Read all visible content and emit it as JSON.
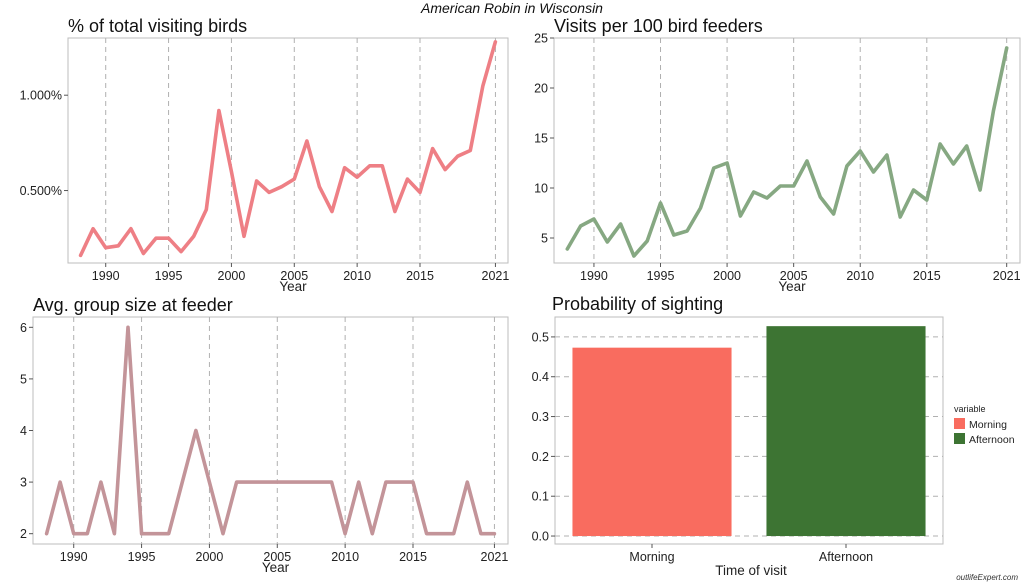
{
  "page": {
    "title": "American Robin in Wisconsin",
    "credit": "outlifeExpert.com"
  },
  "chart_data": [
    {
      "type": "line",
      "title": "% of total visiting birds",
      "xlabel": "Year",
      "ylabel": "",
      "color": "#ee7f85",
      "xlim": [
        1987,
        1923
      ],
      "ylim": [
        0.0012,
        0.013
      ],
      "xticks": [
        1990,
        1995,
        2000,
        2005,
        2010,
        2015,
        2021
      ],
      "yticks": [
        0.005,
        0.01
      ],
      "yticklabels": [
        "0.500%",
        "1.000%"
      ],
      "grid": "vertical-dashed",
      "x": [
        1988,
        1989,
        1990,
        1991,
        1992,
        1993,
        1994,
        1995,
        1996,
        1997,
        1998,
        1999,
        2000,
        2001,
        2002,
        2003,
        2004,
        2005,
        2006,
        2007,
        2008,
        2009,
        2010,
        2011,
        2012,
        2013,
        2014,
        2015,
        2016,
        2017,
        2018,
        2019,
        2020,
        2021
      ],
      "y": [
        0.0016,
        0.003,
        0.002,
        0.0021,
        0.003,
        0.0017,
        0.0025,
        0.0025,
        0.0018,
        0.0026,
        0.004,
        0.0092,
        0.006,
        0.0026,
        0.0055,
        0.0049,
        0.0052,
        0.0056,
        0.0076,
        0.0052,
        0.0039,
        0.0062,
        0.0057,
        0.0063,
        0.0063,
        0.0039,
        0.0056,
        0.0049,
        0.0072,
        0.0061,
        0.0068,
        0.0071,
        0.0105,
        0.0128
      ]
    },
    {
      "type": "line",
      "title": "Visits per 100 bird feeders",
      "xlabel": "Year",
      "ylabel": "",
      "color": "#86a882",
      "xlim": [
        1987,
        2022
      ],
      "ylim": [
        2.5,
        25
      ],
      "xticks": [
        1990,
        1995,
        2000,
        2005,
        2010,
        2015,
        2021
      ],
      "yticks": [
        5,
        10,
        15,
        20,
        25
      ],
      "yticklabels": [
        "5",
        "10",
        "15",
        "20",
        "25"
      ],
      "grid": "vertical-dashed",
      "x": [
        1988,
        1989,
        1990,
        1991,
        1992,
        1993,
        1994,
        1995,
        1996,
        1997,
        1998,
        1999,
        2000,
        2001,
        2002,
        2003,
        2004,
        2005,
        2006,
        2007,
        2008,
        2009,
        2010,
        2011,
        2012,
        2013,
        2014,
        2015,
        2016,
        2017,
        2018,
        2019,
        2020,
        2021
      ],
      "y": [
        3.9,
        6.2,
        6.9,
        4.6,
        6.4,
        3.2,
        4.7,
        8.5,
        5.3,
        5.7,
        8.0,
        12.0,
        12.5,
        7.2,
        9.6,
        9.0,
        10.2,
        10.2,
        12.7,
        9.1,
        7.4,
        12.2,
        13.7,
        11.6,
        13.3,
        7.1,
        9.8,
        8.8,
        14.4,
        12.4,
        14.2,
        9.8,
        17.7,
        24.0
      ]
    },
    {
      "type": "line",
      "title": "Avg. group size at feeder",
      "xlabel": "Year",
      "ylabel": "",
      "color": "#c39499",
      "xlim": [
        1987,
        2022
      ],
      "ylim": [
        1.8,
        6.2
      ],
      "xticks": [
        1990,
        1995,
        2000,
        2005,
        2010,
        2015,
        2021
      ],
      "yticks": [
        2,
        3,
        4,
        5,
        6
      ],
      "yticklabels": [
        "2",
        "3",
        "4",
        "5",
        "6"
      ],
      "grid": "vertical-dashed",
      "x": [
        1988,
        1989,
        1990,
        1991,
        1992,
        1993,
        1994,
        1995,
        1996,
        1997,
        1998,
        1999,
        2000,
        2001,
        2002,
        2003,
        2004,
        2005,
        2006,
        2007,
        2008,
        2009,
        2010,
        2011,
        2012,
        2013,
        2014,
        2015,
        2016,
        2017,
        2018,
        2019,
        2020,
        2021
      ],
      "y": [
        2,
        3,
        2,
        2,
        3,
        2,
        6,
        2,
        2,
        2,
        3,
        4,
        3,
        2,
        3,
        3,
        3,
        3,
        3,
        3,
        3,
        3,
        2,
        3,
        2,
        3,
        3,
        3,
        2,
        2,
        2,
        3,
        2,
        2
      ]
    },
    {
      "type": "bar",
      "title": "Probability of sighting",
      "xlabel": "Time of visit",
      "ylabel": "",
      "categories": [
        "Morning",
        "Afternoon"
      ],
      "values": [
        0.473,
        0.527
      ],
      "colors": [
        "#f96c5f",
        "#3d7433"
      ],
      "ylim": [
        -0.02,
        0.55
      ],
      "yticks": [
        0,
        0.1,
        0.2,
        0.3,
        0.4,
        0.5
      ],
      "yticklabels": [
        "0.0",
        "0.1",
        "0.2",
        "0.3",
        "0.4",
        "0.5"
      ],
      "legend": {
        "title": "variable",
        "entries": [
          "Morning",
          "Afternoon"
        ],
        "placement": "right"
      }
    }
  ]
}
